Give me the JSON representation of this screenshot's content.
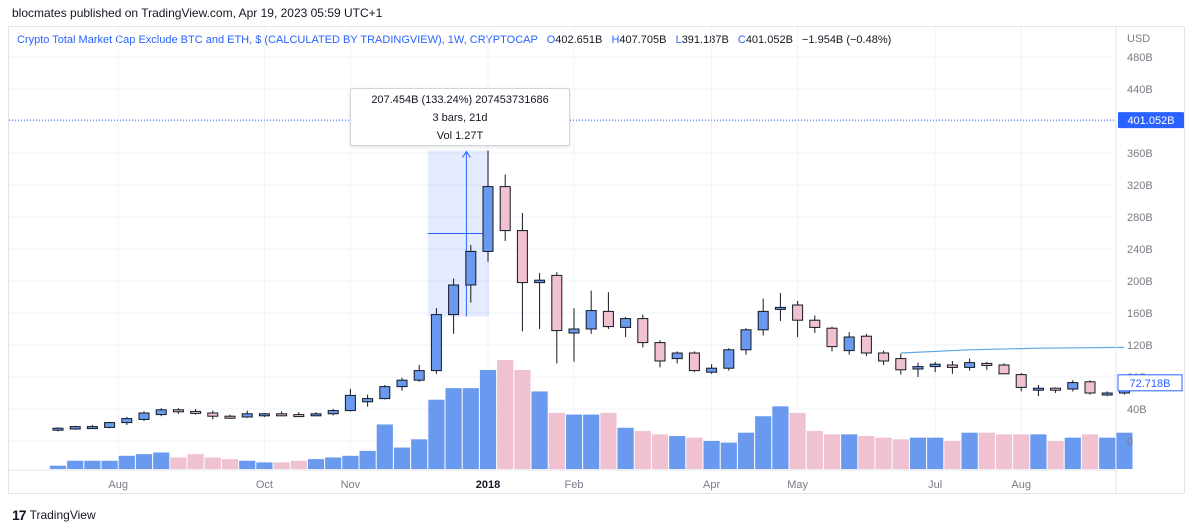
{
  "header": {
    "published": "blocmates published on TradingView.com, Apr 19, 2023 05:59 UTC+1"
  },
  "legend": {
    "symbol": "Crypto Total Market Cap Exclude BTC and ETH, $ (CALCULATED BY TRADINGVIEW), 1W, CRYPTOCAP",
    "o_label": "O",
    "o_value": "402.651B",
    "h_label": "H",
    "h_value": "407.705B",
    "l_label": "L",
    "l_value": "391.187B",
    "c_label": "C",
    "c_value": "401.052B",
    "change": "−1.954B (−0.48%)"
  },
  "tooltip": {
    "line1": "207.454B (133.24%) 207453731686",
    "line2": "3 bars, 21d",
    "line3": "Vol 1.27T"
  },
  "footer": {
    "brand": "TradingView",
    "logo": "17"
  },
  "colors": {
    "up": "#6a9aef",
    "down": "#f0c1d0",
    "line": "#5fa8e8",
    "price_label": "#2962ff",
    "measure": "#2962ff"
  },
  "chart_data": {
    "type": "candlestick",
    "interval": "1W",
    "currency_label": "USD",
    "y_axis_ticks": [
      "480B",
      "440B",
      "400B",
      "360B",
      "320B",
      "280B",
      "240B",
      "200B",
      "160B",
      "120B",
      "80B",
      "40B",
      "0"
    ],
    "y_tick_values": [
      480,
      440,
      400,
      360,
      320,
      280,
      240,
      200,
      160,
      120,
      80,
      40,
      0
    ],
    "x_axis_ticks": [
      {
        "label": "Aug",
        "index": 3.5
      },
      {
        "label": "Oct",
        "index": 12
      },
      {
        "label": "Nov",
        "index": 17
      },
      {
        "label": "2018",
        "index": 25,
        "bold": true
      },
      {
        "label": "Feb",
        "index": 30
      },
      {
        "label": "Apr",
        "index": 38
      },
      {
        "label": "May",
        "index": 43
      },
      {
        "label": "Jul",
        "index": 51
      },
      {
        "label": "Aug",
        "index": 56
      }
    ],
    "last_price_label": "401.052B",
    "last_price": 401.052,
    "secondary_label": "72.718B",
    "secondary_value": 72.718,
    "moving_average": [
      {
        "index": 49,
        "value": 110
      },
      {
        "index": 53,
        "value": 114
      },
      {
        "index": 57,
        "value": 116
      },
      {
        "index": 62,
        "value": 117
      }
    ],
    "candles": [
      {
        "o": 14,
        "h": 17,
        "l": 12,
        "c": 16
      },
      {
        "o": 15,
        "h": 19,
        "l": 14,
        "c": 18
      },
      {
        "o": 16,
        "h": 20,
        "l": 15,
        "c": 18
      },
      {
        "o": 17,
        "h": 24,
        "l": 16,
        "c": 23
      },
      {
        "o": 23,
        "h": 30,
        "l": 20,
        "c": 28
      },
      {
        "o": 27,
        "h": 37,
        "l": 25,
        "c": 35
      },
      {
        "o": 33,
        "h": 41,
        "l": 31,
        "c": 39
      },
      {
        "o": 39,
        "h": 41,
        "l": 34,
        "c": 37
      },
      {
        "o": 37,
        "h": 40,
        "l": 33,
        "c": 35
      },
      {
        "o": 35,
        "h": 38,
        "l": 27,
        "c": 31
      },
      {
        "o": 31,
        "h": 33,
        "l": 28,
        "c": 30
      },
      {
        "o": 30,
        "h": 38,
        "l": 29,
        "c": 34
      },
      {
        "o": 32,
        "h": 35,
        "l": 30,
        "c": 34
      },
      {
        "o": 34,
        "h": 37,
        "l": 31,
        "c": 33
      },
      {
        "o": 33,
        "h": 36,
        "l": 30,
        "c": 32
      },
      {
        "o": 32,
        "h": 36,
        "l": 31,
        "c": 34
      },
      {
        "o": 34,
        "h": 40,
        "l": 32,
        "c": 38
      },
      {
        "o": 38,
        "h": 65,
        "l": 37,
        "c": 57
      },
      {
        "o": 49,
        "h": 58,
        "l": 43,
        "c": 53
      },
      {
        "o": 53,
        "h": 70,
        "l": 52,
        "c": 68
      },
      {
        "o": 68,
        "h": 79,
        "l": 63,
        "c": 76
      },
      {
        "o": 76,
        "h": 95,
        "l": 74,
        "c": 88
      },
      {
        "o": 88,
        "h": 166,
        "l": 84,
        "c": 158
      },
      {
        "o": 158,
        "h": 203,
        "l": 134,
        "c": 195
      },
      {
        "o": 195,
        "h": 245,
        "l": 173,
        "c": 237
      },
      {
        "o": 237,
        "h": 363,
        "l": 224,
        "c": 318
      },
      {
        "o": 318,
        "h": 333,
        "l": 250,
        "c": 263
      },
      {
        "o": 263,
        "h": 285,
        "l": 137,
        "c": 198
      },
      {
        "o": 198,
        "h": 210,
        "l": 140,
        "c": 201
      },
      {
        "o": 207,
        "h": 211,
        "l": 97,
        "c": 138
      },
      {
        "o": 135,
        "h": 166,
        "l": 99,
        "c": 140
      },
      {
        "o": 140,
        "h": 188,
        "l": 134,
        "c": 163
      },
      {
        "o": 162,
        "h": 186,
        "l": 140,
        "c": 143
      },
      {
        "o": 142,
        "h": 155,
        "l": 130,
        "c": 153
      },
      {
        "o": 153,
        "h": 158,
        "l": 117,
        "c": 123
      },
      {
        "o": 123,
        "h": 126,
        "l": 92,
        "c": 100
      },
      {
        "o": 103,
        "h": 112,
        "l": 97,
        "c": 110
      },
      {
        "o": 110,
        "h": 112,
        "l": 86,
        "c": 88
      },
      {
        "o": 86,
        "h": 96,
        "l": 84,
        "c": 91
      },
      {
        "o": 91,
        "h": 116,
        "l": 88,
        "c": 114
      },
      {
        "o": 114,
        "h": 141,
        "l": 108,
        "c": 139
      },
      {
        "o": 139,
        "h": 178,
        "l": 132,
        "c": 162
      },
      {
        "o": 165,
        "h": 185,
        "l": 150,
        "c": 167
      },
      {
        "o": 170,
        "h": 175,
        "l": 130,
        "c": 151
      },
      {
        "o": 151,
        "h": 157,
        "l": 135,
        "c": 142
      },
      {
        "o": 141,
        "h": 143,
        "l": 112,
        "c": 118
      },
      {
        "o": 113,
        "h": 136,
        "l": 108,
        "c": 130
      },
      {
        "o": 131,
        "h": 134,
        "l": 106,
        "c": 110
      },
      {
        "o": 110,
        "h": 113,
        "l": 95,
        "c": 100
      },
      {
        "o": 103,
        "h": 109,
        "l": 83,
        "c": 89
      },
      {
        "o": 90,
        "h": 98,
        "l": 80,
        "c": 93
      },
      {
        "o": 93,
        "h": 99,
        "l": 86,
        "c": 96
      },
      {
        "o": 95,
        "h": 100,
        "l": 84,
        "c": 92
      },
      {
        "o": 92,
        "h": 103,
        "l": 88,
        "c": 98
      },
      {
        "o": 97,
        "h": 99,
        "l": 89,
        "c": 96
      },
      {
        "o": 95,
        "h": 97,
        "l": 84,
        "c": 84
      },
      {
        "o": 83,
        "h": 85,
        "l": 62,
        "c": 67
      },
      {
        "o": 66,
        "h": 70,
        "l": 56,
        "c": 66
      },
      {
        "o": 66,
        "h": 67,
        "l": 60,
        "c": 65
      },
      {
        "o": 65,
        "h": 76,
        "l": 62,
        "c": 73
      },
      {
        "o": 74,
        "h": 76,
        "l": 58,
        "c": 60
      },
      {
        "o": 60,
        "h": 62,
        "l": 56,
        "c": 60
      },
      {
        "o": 60,
        "h": 77,
        "l": 58,
        "c": 75
      }
    ],
    "volume_relative": [
      0.1,
      0.25,
      0.25,
      0.25,
      0.4,
      0.45,
      0.5,
      0.35,
      0.45,
      0.35,
      0.3,
      0.25,
      0.2,
      0.2,
      0.25,
      0.3,
      0.35,
      0.4,
      0.55,
      1.35,
      0.65,
      0.9,
      2.1,
      2.45,
      2.45,
      3.0,
      3.3,
      3.0,
      2.35,
      1.7,
      1.65,
      1.65,
      1.7,
      1.25,
      1.15,
      1.05,
      1.0,
      0.95,
      0.85,
      0.8,
      1.1,
      1.6,
      1.9,
      1.7,
      1.15,
      1.05,
      1.05,
      1.0,
      0.95,
      0.9,
      0.95,
      0.95,
      0.85,
      1.1,
      1.1,
      1.05,
      1.05,
      1.05,
      0.85,
      0.95,
      1.05,
      0.95,
      1.1
    ],
    "measure_range": {
      "start_index": 22,
      "end_index": 25,
      "from": 155.6,
      "to": 363.1
    }
  }
}
